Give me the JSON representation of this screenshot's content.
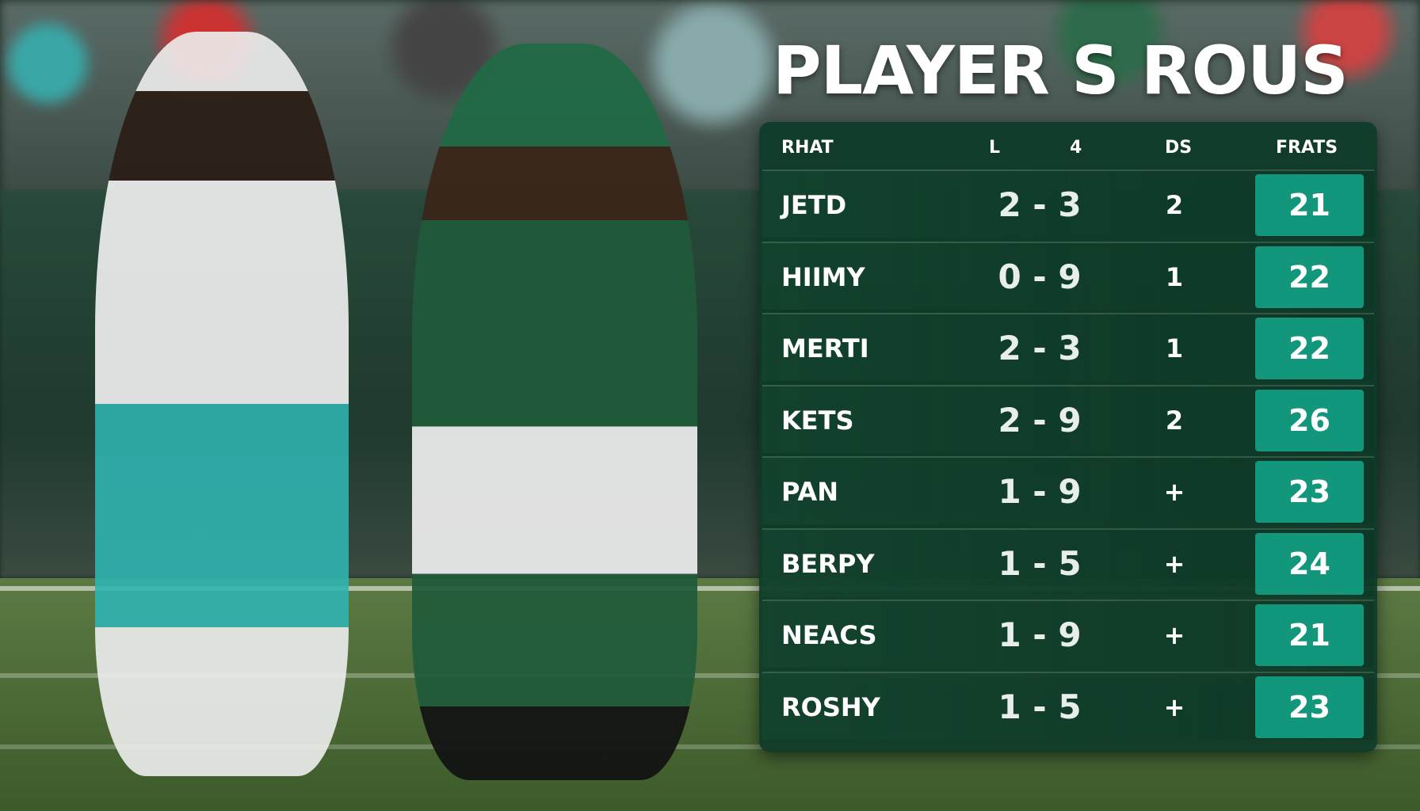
{
  "title": "PLAYER S ROUS",
  "table": {
    "headers": [
      "RHAT",
      "L",
      "4",
      "DS",
      "FRATS"
    ],
    "rows": [
      {
        "name": "JETD",
        "score": "2 - 3",
        "ds": "2",
        "frats": "21"
      },
      {
        "name": "HIIMY",
        "score": "0 - 9",
        "ds": "1",
        "frats": "22"
      },
      {
        "name": "MERTI",
        "score": "2 - 3",
        "ds": "1",
        "frats": "22"
      },
      {
        "name": "KETS",
        "score": "2 - 9",
        "ds": "2",
        "frats": "26"
      },
      {
        "name": "PAN",
        "score": "1 - 9",
        "ds": "+",
        "frats": "23"
      },
      {
        "name": "BERPY",
        "score": "1 - 5",
        "ds": "+",
        "frats": "24"
      },
      {
        "name": "NEACS",
        "score": "1 - 9",
        "ds": "+",
        "frats": "21"
      },
      {
        "name": "ROSHY",
        "score": "1 - 5",
        "ds": "+",
        "frats": "23"
      }
    ]
  },
  "colors": {
    "panel": "#0e3a28",
    "accent": "#13977c",
    "jersey_green": "#1f5a3a",
    "jersey_teal": "#2fb3b0"
  }
}
